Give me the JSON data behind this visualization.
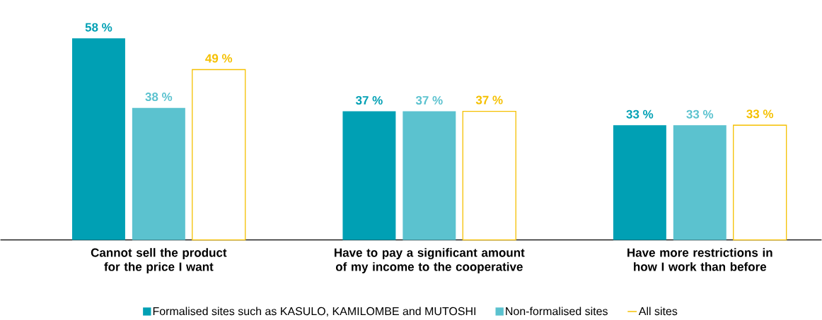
{
  "chart_data": {
    "type": "bar",
    "categories": [
      "Cannot sell the product for the price I want",
      "Have to pay a significant amount of my income to the cooperative",
      "Have more restrictions in how I work than before"
    ],
    "series": [
      {
        "name": "Formalised sites such as KASULO, KAMILOMBE and MUTOSHI",
        "color": "#00a0b4",
        "values": [
          58,
          37,
          33
        ],
        "value_labels": [
          "58 %",
          "37 %",
          "33 %"
        ]
      },
      {
        "name": "Non-formalised sites",
        "color": "#5bc2cf",
        "values": [
          38,
          37,
          33
        ],
        "value_labels": [
          "38 %",
          "37 %",
          "33 %"
        ]
      },
      {
        "name": "All sites",
        "color": "#f5c000",
        "values": [
          49,
          37,
          33
        ],
        "value_labels": [
          "49 %",
          "37 %",
          "33 %"
        ]
      }
    ],
    "legend": "bottom"
  }
}
